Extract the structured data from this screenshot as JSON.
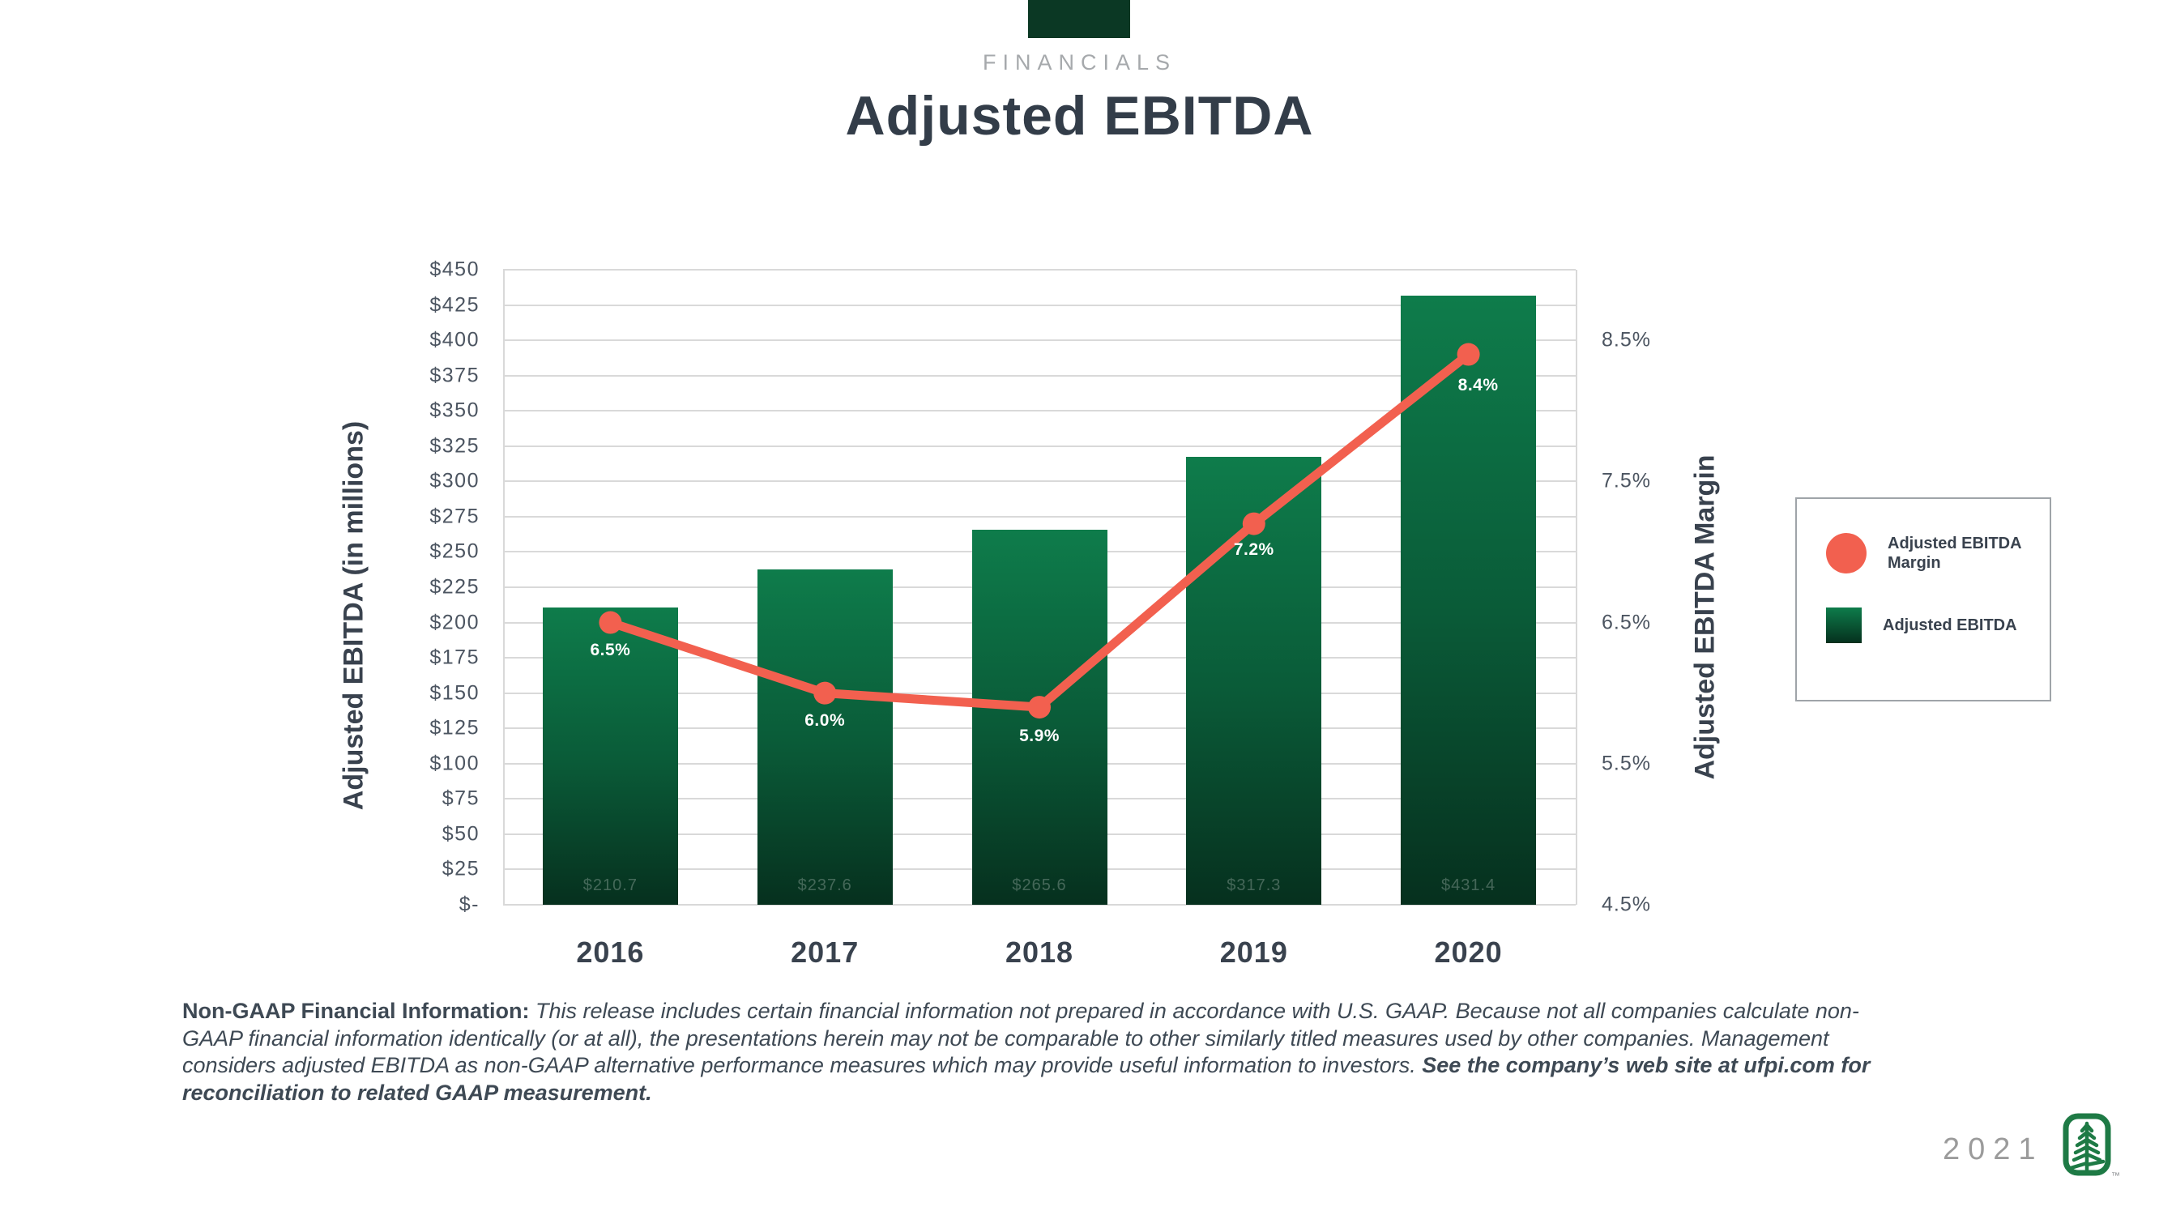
{
  "header": {
    "eyebrow": "FINANCIALS",
    "title": "Adjusted EBITDA",
    "accent_color": "#0B3824"
  },
  "chart_data": {
    "type": "bar",
    "categories": [
      "2016",
      "2017",
      "2018",
      "2019",
      "2020"
    ],
    "series": [
      {
        "name": "Adjusted EBITDA",
        "type": "bar",
        "unit": "millions USD",
        "values": [
          210.7,
          237.6,
          265.6,
          317.3,
          431.4
        ],
        "labels": [
          "$210.7",
          "$237.6",
          "$265.6",
          "$317.3",
          "$431.4"
        ]
      },
      {
        "name": "Adjusted EBITDA Margin",
        "type": "line",
        "unit": "percent",
        "values": [
          6.5,
          6.0,
          5.9,
          7.2,
          8.4
        ],
        "labels": [
          "6.5%",
          "6.0%",
          "5.9%",
          "7.2%",
          "8.4%"
        ]
      }
    ],
    "title": "Adjusted EBITDA",
    "xlabel": "",
    "ylabel_left": "Adjusted EBITDA  (in millions)",
    "ylabel_right": "Adjusted EBITDA Margin",
    "left_axis": {
      "min": 0,
      "max": 450,
      "step": 25,
      "tick_labels": [
        "$450",
        "$425",
        "$400",
        "$375",
        "$350",
        "$325",
        "$300",
        "$275",
        "$250",
        "$225",
        "$200",
        "$175",
        "$150",
        "$125",
        "$100",
        "$75",
        "$50",
        "$25",
        "$-"
      ]
    },
    "right_axis": {
      "min": 4.5,
      "max": 9.0,
      "ticks": [
        {
          "value": 8.5,
          "label": "8.5%"
        },
        {
          "value": 7.5,
          "label": "7.5%"
        },
        {
          "value": 6.5,
          "label": "6.5%"
        },
        {
          "value": 5.5,
          "label": "5.5%"
        },
        {
          "value": 4.5,
          "label": "4.5%"
        }
      ]
    },
    "grid": true,
    "legend_position": "right",
    "colors": {
      "bar_top": "#0E7C4B",
      "bar_mid": "#0A5B38",
      "bar_bottom": "#06301E",
      "line": "#F2604F",
      "gridline": "#D9D9D9",
      "tick_text": "#4C5561",
      "category_text": "#39424E"
    }
  },
  "legend": {
    "items": [
      {
        "label": "Adjusted EBITDA Margin",
        "marker": "circle",
        "color": "#F2604F"
      },
      {
        "label": "Adjusted EBITDA",
        "marker": "gradient-square",
        "color_top": "#0E7C4B",
        "color_bottom": "#05301D"
      }
    ]
  },
  "footer": {
    "lead": "Non-GAAP Financial Information: ",
    "body": "This release includes certain financial information not prepared in accordance with U.S. GAAP. Because not all companies calculate non-GAAP financial information identically (or at all), the presentations herein may not be comparable to other similarly titled measures used by other companies. Management considers adjusted EBITDA as non-GAAP alternative performance measures which may provide useful information to investors. ",
    "emphasis": "See the company’s web site at ufpi.com for reconciliation to related GAAP measurement."
  },
  "branding": {
    "year": "2021",
    "logo": "ufp-tree-logo",
    "logo_color": "#1E7A45",
    "trademark": "™"
  }
}
